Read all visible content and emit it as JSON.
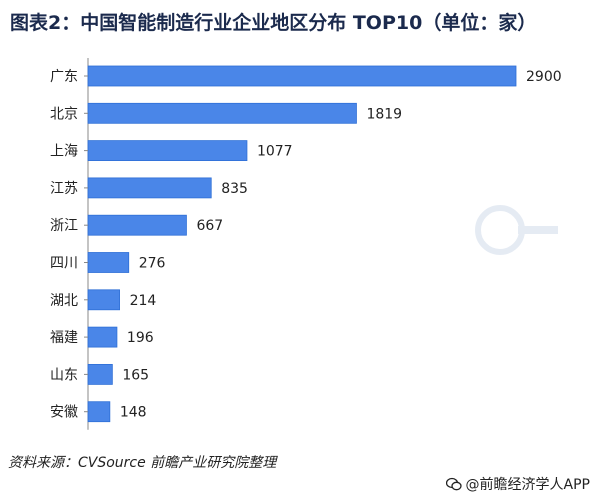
{
  "title": "图表2：中国智能制造行业企业地区分布 TOP10（单位：家）",
  "source": "资料来源：CVSource  前瞻产业研究院整理",
  "brand": "@前瞻经济学人APP",
  "colors": {
    "bar": "#4a86e8",
    "bar_stroke": "#2e6fd6"
  },
  "chart_data": {
    "type": "bar",
    "orientation": "horizontal",
    "categories": [
      "广东",
      "北京",
      "上海",
      "江苏",
      "浙江",
      "四川",
      "湖北",
      "福建",
      "山东",
      "安徽"
    ],
    "values": [
      2900,
      1819,
      1077,
      835,
      667,
      276,
      214,
      196,
      165,
      148
    ],
    "xlim": [
      0,
      2900
    ],
    "grid": false,
    "legend": false,
    "xlabel": "",
    "ylabel": ""
  }
}
